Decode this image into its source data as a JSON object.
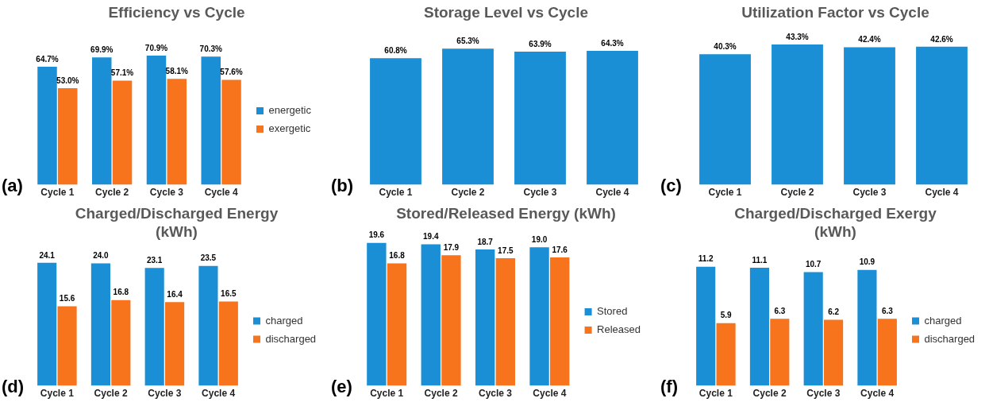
{
  "chart_data": [
    {
      "type": "bar",
      "title": "Efficiency vs Cycle",
      "categories": [
        "Cycle 1",
        "Cycle 2",
        "Cycle 3",
        "Cycle 4"
      ],
      "series": [
        {
          "name": "energetic",
          "color": "#1a8fd6",
          "values": [
            64.7,
            69.9,
            70.9,
            70.3
          ],
          "value_labels": [
            "64.7%",
            "69.9%",
            "70.9%",
            "70.3%"
          ]
        },
        {
          "name": "exergetic",
          "color": "#f7741c",
          "values": [
            53.0,
            57.1,
            58.1,
            57.6
          ],
          "value_labels": [
            "53.0%",
            "57.1%",
            "58.1%",
            "57.6%"
          ]
        }
      ],
      "legend": "right",
      "grid": false,
      "tick_labels": "x",
      "annotations": [
        "(a)"
      ]
    },
    {
      "type": "bar",
      "title": "Storage Level vs Cycle",
      "categories": [
        "Cycle 1",
        "Cycle 2",
        "Cycle 3",
        "Cycle 4"
      ],
      "series": [
        {
          "color": "#1a8fd6",
          "values": [
            60.8,
            65.3,
            63.9,
            64.3
          ],
          "value_labels": [
            "60.8%",
            "65.3%",
            "63.9%",
            "64.3%"
          ]
        }
      ],
      "grid": false,
      "tick_labels": "x",
      "annotations": [
        "(b)"
      ]
    },
    {
      "type": "bar",
      "title": "Utilization Factor vs Cycle",
      "categories": [
        "Cycle 1",
        "Cycle 2",
        "Cycle 3",
        "Cycle 4"
      ],
      "series": [
        {
          "color": "#1a8fd6",
          "values": [
            40.3,
            43.3,
            42.4,
            42.6
          ],
          "value_labels": [
            "40.3%",
            "43.3%",
            "42.4%",
            "42.6%"
          ]
        }
      ],
      "grid": false,
      "tick_labels": "x",
      "annotations": [
        "(c)"
      ]
    },
    {
      "type": "bar",
      "title": "Charged/Discharged Energy (kWh)",
      "categories": [
        "Cycle 1",
        "Cycle 2",
        "Cycle 3",
        "Cycle 4"
      ],
      "series": [
        {
          "name": "charged",
          "color": "#1a8fd6",
          "values": [
            24.1,
            24.0,
            23.1,
            23.5
          ],
          "value_labels": [
            "24.1",
            "24.0",
            "23.1",
            "23.5"
          ]
        },
        {
          "name": "discharged",
          "color": "#f7741c",
          "values": [
            15.6,
            16.8,
            16.4,
            16.5
          ],
          "value_labels": [
            "15.6",
            "16.8",
            "16.4",
            "16.5"
          ]
        }
      ],
      "legend": "right",
      "grid": false,
      "tick_labels": "x",
      "annotations": [
        "(d)"
      ]
    },
    {
      "type": "bar",
      "title": "Stored/Released Energy (kWh)",
      "categories": [
        "Cycle 1",
        "Cycle 2",
        "Cycle 3",
        "Cycle 4"
      ],
      "series": [
        {
          "name": "Stored",
          "color": "#1a8fd6",
          "values": [
            19.6,
            19.4,
            18.7,
            19.0
          ],
          "value_labels": [
            "19.6",
            "19.4",
            "18.7",
            "19.0"
          ]
        },
        {
          "name": "Released",
          "color": "#f7741c",
          "values": [
            16.8,
            17.9,
            17.5,
            17.6
          ],
          "value_labels": [
            "16.8",
            "17.9",
            "17.5",
            "17.6"
          ]
        }
      ],
      "legend": "right",
      "grid": false,
      "tick_labels": "x",
      "annotations": [
        "(e)"
      ]
    },
    {
      "type": "bar",
      "title": "Charged/Discharged Exergy (kWh)",
      "categories": [
        "Cycle 1",
        "Cycle 2",
        "Cycle 3",
        "Cycle 4"
      ],
      "series": [
        {
          "name": "charged",
          "color": "#1a8fd6",
          "values": [
            11.2,
            11.1,
            10.7,
            10.9
          ],
          "value_labels": [
            "11.2",
            "11.1",
            "10.7",
            "10.9"
          ]
        },
        {
          "name": "discharged",
          "color": "#f7741c",
          "values": [
            5.9,
            6.3,
            6.2,
            6.3
          ],
          "value_labels": [
            "5.9",
            "6.3",
            "6.2",
            "6.3"
          ]
        }
      ],
      "legend": "right",
      "grid": false,
      "tick_labels": "x",
      "annotations": [
        "(f)"
      ]
    }
  ]
}
